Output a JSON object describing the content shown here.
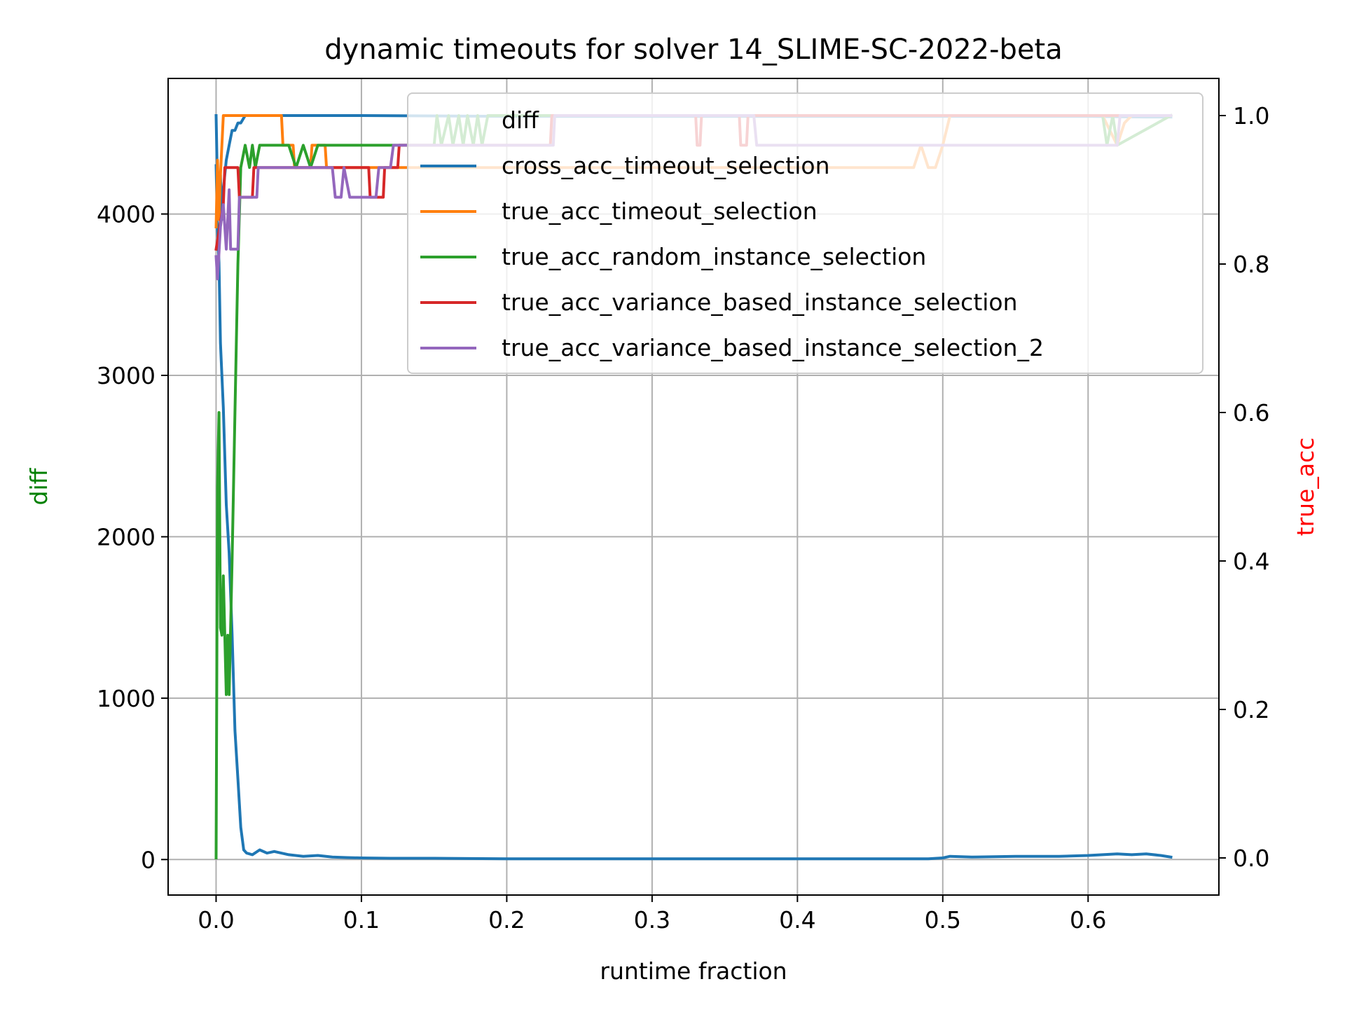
{
  "chart_data": {
    "type": "line",
    "title": "dynamic timeouts for solver 14_SLIME-SC-2022-beta",
    "xlabel": "runtime fraction",
    "ylabel_left": "diff",
    "ylabel_right": "true_acc",
    "xlim": [
      -0.033,
      0.69
    ],
    "ylim_left": [
      -220,
      4840
    ],
    "ylim_right": [
      -0.05,
      1.05
    ],
    "x_ticks": [
      "0.0",
      "0.1",
      "0.2",
      "0.3",
      "0.4",
      "0.5",
      "0.6"
    ],
    "x_tick_values": [
      0,
      0.1,
      0.2,
      0.3,
      0.4,
      0.5,
      0.6
    ],
    "y_left_ticks": [
      "0",
      "1000",
      "2000",
      "3000",
      "4000"
    ],
    "y_left_tick_values": [
      0,
      1000,
      2000,
      3000,
      4000
    ],
    "y_right_ticks": [
      "0.0",
      "0.2",
      "0.4",
      "0.6",
      "0.8",
      "1.0"
    ],
    "y_right_tick_values": [
      0,
      0.2,
      0.4,
      0.6,
      0.8,
      1.0
    ],
    "grid": true,
    "legend_placement": "upper-right",
    "colors": {
      "diff": "#1f77b4",
      "cross_acc_timeout_selection": "#1f77b4",
      "true_acc_timeout_selection": "#ff7f0e",
      "true_acc_random_instance_selection": "#2ca02c",
      "true_acc_variance_based_instance_selection": "#d62728",
      "true_acc_variance_based_instance_selection_2": "#9467bd",
      "ylabel_left": "#008000",
      "ylabel_right": "#ff0000"
    },
    "legend": [
      {
        "name": "diff",
        "has_line": false
      },
      {
        "name": "cross_acc_timeout_selection",
        "has_line": true
      },
      {
        "name": "true_acc_timeout_selection",
        "has_line": true
      },
      {
        "name": "true_acc_random_instance_selection",
        "has_line": true
      },
      {
        "name": "true_acc_variance_based_instance_selection",
        "has_line": true
      },
      {
        "name": "true_acc_variance_based_instance_selection_2",
        "has_line": true
      }
    ],
    "series": [
      {
        "name": "diff",
        "axis": "left",
        "x": [
          0,
          0.001,
          0.002,
          0.003,
          0.005,
          0.007,
          0.009,
          0.011,
          0.013,
          0.015,
          0.017,
          0.019,
          0.021,
          0.025,
          0.03,
          0.035,
          0.04,
          0.05,
          0.06,
          0.07,
          0.08,
          0.09,
          0.1,
          0.12,
          0.15,
          0.2,
          0.25,
          0.3,
          0.35,
          0.4,
          0.45,
          0.49,
          0.5,
          0.505,
          0.52,
          0.55,
          0.58,
          0.6,
          0.61,
          0.62,
          0.63,
          0.64,
          0.65,
          0.657
        ],
        "y": [
          4300,
          3900,
          3700,
          3200,
          2800,
          2200,
          1900,
          1400,
          800,
          500,
          200,
          60,
          40,
          30,
          60,
          40,
          50,
          30,
          20,
          25,
          15,
          12,
          10,
          8,
          8,
          5,
          5,
          5,
          5,
          5,
          5,
          5,
          10,
          20,
          15,
          20,
          20,
          25,
          30,
          35,
          30,
          35,
          25,
          15
        ]
      },
      {
        "name": "cross_acc_timeout_selection",
        "axis": "right",
        "x": [
          0,
          0.001,
          0.002,
          0.003,
          0.004,
          0.005,
          0.007,
          0.009,
          0.011,
          0.013,
          0.015,
          0.017,
          0.02,
          0.03,
          0.04,
          0.06,
          0.1,
          0.2,
          0.3,
          0.4,
          0.5,
          0.6,
          0.64,
          0.657
        ],
        "y": [
          1.0,
          0.9,
          0.88,
          0.92,
          0.86,
          0.9,
          0.94,
          0.96,
          0.98,
          0.98,
          0.99,
          0.99,
          1.0,
          1.0,
          1.0,
          1.0,
          1.0,
          0.999,
          0.999,
          0.999,
          0.999,
          0.999,
          0.998,
          0.998
        ]
      },
      {
        "name": "true_acc_timeout_selection",
        "axis": "right",
        "x": [
          0,
          0.001,
          0.002,
          0.003,
          0.005,
          0.006,
          0.045,
          0.046,
          0.053,
          0.054,
          0.065,
          0.066,
          0.075,
          0.076,
          0.48,
          0.485,
          0.49,
          0.495,
          0.5,
          0.505,
          0.61,
          0.615,
          0.62,
          0.625,
          0.63,
          0.635,
          0.657
        ],
        "y": [
          0.85,
          0.94,
          0.86,
          0.92,
          1.0,
          1.0,
          1.0,
          0.96,
          0.96,
          0.93,
          0.93,
          0.96,
          0.96,
          0.93,
          0.93,
          0.96,
          0.93,
          0.93,
          0.96,
          1.0,
          1.0,
          0.98,
          0.96,
          0.99,
          1.0,
          1.0,
          1.0
        ]
      },
      {
        "name": "true_acc_random_instance_selection",
        "axis": "right",
        "x": [
          0,
          0.001,
          0.002,
          0.003,
          0.004,
          0.005,
          0.006,
          0.007,
          0.008,
          0.009,
          0.011,
          0.013,
          0.015,
          0.017,
          0.02,
          0.023,
          0.025,
          0.027,
          0.03,
          0.033,
          0.036,
          0.04,
          0.045,
          0.05,
          0.055,
          0.06,
          0.065,
          0.07,
          0.075,
          0.1,
          0.15,
          0.152,
          0.155,
          0.16,
          0.163,
          0.167,
          0.17,
          0.173,
          0.177,
          0.18,
          0.183,
          0.187,
          0.19,
          0.2,
          0.3,
          0.4,
          0.5,
          0.6,
          0.61,
          0.613,
          0.617,
          0.62,
          0.657
        ],
        "y": [
          0.0,
          0.5,
          0.6,
          0.31,
          0.3,
          0.38,
          0.3,
          0.22,
          0.3,
          0.22,
          0.4,
          0.6,
          0.8,
          0.93,
          0.96,
          0.93,
          0.96,
          0.93,
          0.96,
          0.96,
          0.96,
          0.96,
          0.96,
          0.96,
          0.93,
          0.96,
          0.93,
          0.96,
          0.96,
          0.96,
          0.96,
          1.0,
          0.96,
          1.0,
          0.96,
          1.0,
          0.96,
          1.0,
          0.96,
          1.0,
          0.96,
          1.0,
          1.0,
          1.0,
          1.0,
          1.0,
          1.0,
          1.0,
          1.0,
          0.96,
          1.0,
          0.96,
          1.0
        ]
      },
      {
        "name": "true_acc_variance_based_instance_selection",
        "axis": "right",
        "x": [
          0,
          0.005,
          0.006,
          0.015,
          0.016,
          0.025,
          0.026,
          0.03,
          0.031,
          0.105,
          0.106,
          0.115,
          0.116,
          0.125,
          0.126,
          0.23,
          0.231,
          0.33,
          0.331,
          0.333,
          0.334,
          0.36,
          0.361,
          0.365,
          0.366,
          0.657
        ],
        "y": [
          0.82,
          0.88,
          0.93,
          0.93,
          0.89,
          0.89,
          0.93,
          0.93,
          0.93,
          0.93,
          0.89,
          0.89,
          0.93,
          0.93,
          0.96,
          0.96,
          1.0,
          1.0,
          0.96,
          0.96,
          1.0,
          1.0,
          0.96,
          0.96,
          1.0,
          1.0
        ]
      },
      {
        "name": "true_acc_variance_based_instance_selection_2",
        "axis": "right",
        "x": [
          0,
          0.001,
          0.003,
          0.005,
          0.007,
          0.009,
          0.01,
          0.015,
          0.016,
          0.018,
          0.019,
          0.028,
          0.029,
          0.08,
          0.082,
          0.086,
          0.088,
          0.092,
          0.094,
          0.11,
          0.112,
          0.12,
          0.122,
          0.13,
          0.232,
          0.233,
          0.37,
          0.372,
          0.6,
          0.61,
          0.62,
          0.622,
          0.657
        ],
        "y": [
          0.81,
          0.78,
          0.85,
          0.88,
          0.82,
          0.9,
          0.82,
          0.82,
          0.89,
          0.89,
          0.89,
          0.89,
          0.93,
          0.93,
          0.89,
          0.89,
          0.93,
          0.89,
          0.89,
          0.89,
          0.93,
          0.93,
          0.96,
          0.96,
          0.96,
          1.0,
          1.0,
          0.96,
          0.96,
          0.96,
          0.96,
          1.0,
          1.0
        ]
      }
    ]
  }
}
